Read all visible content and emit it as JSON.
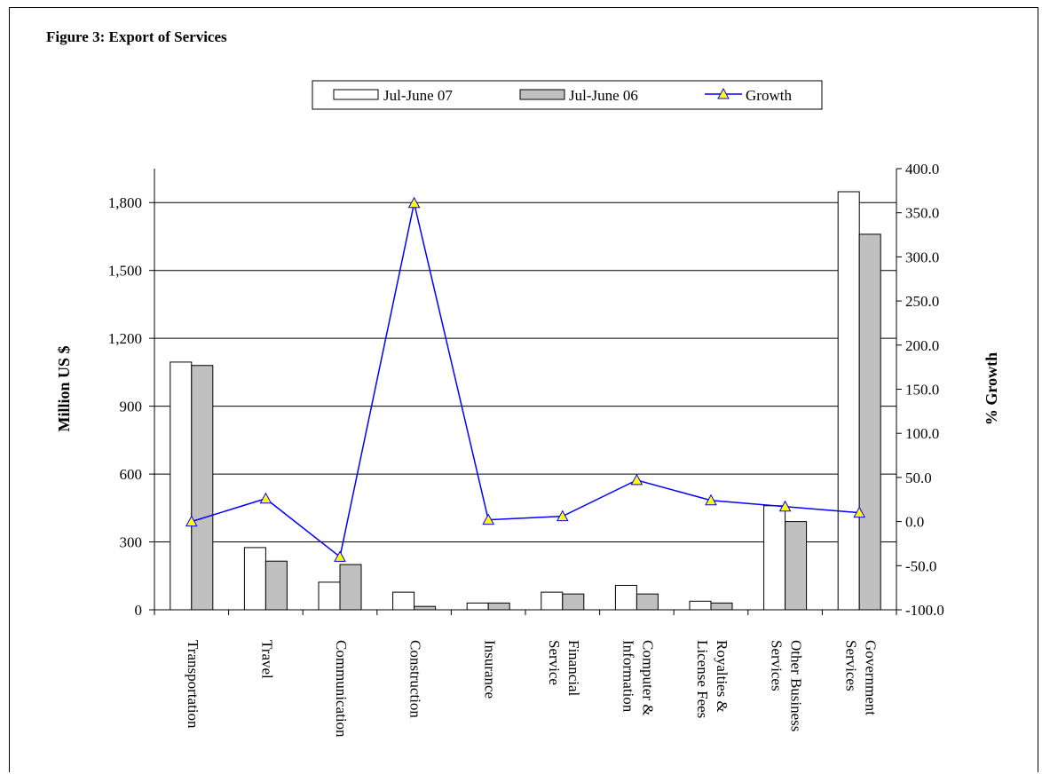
{
  "figure": {
    "title": "Figure 3: Export of Services"
  },
  "legend": {
    "items": [
      {
        "label": "Jul-June 07",
        "kind": "bar",
        "fill": "#ffffff"
      },
      {
        "label": "Jul-June 06",
        "kind": "bar",
        "fill": "#c0c0c0"
      },
      {
        "label": "Growth",
        "kind": "line",
        "color": "#0000ff",
        "marker": "triangle",
        "marker_fill": "#ffff00"
      }
    ]
  },
  "chart_data": {
    "type": "bar",
    "title": "Figure 3: Export of Services",
    "categories": [
      [
        "Transportation"
      ],
      [
        "Travel"
      ],
      [
        "Communication"
      ],
      [
        "Construction"
      ],
      [
        "Insurance"
      ],
      [
        "Financial",
        "Service"
      ],
      [
        "Computer &",
        "Information"
      ],
      [
        "Royalties &",
        "License Fees"
      ],
      [
        "Other Business",
        "Services"
      ],
      [
        "Government",
        "Services"
      ]
    ],
    "series": [
      {
        "name": "Jul-June 07",
        "type": "bar",
        "axis": "left",
        "color": "#ffffff",
        "values": [
          1095,
          275,
          122,
          78,
          30,
          78,
          108,
          38,
          460,
          1848
        ]
      },
      {
        "name": "Jul-June 06",
        "type": "bar",
        "axis": "left",
        "color": "#c0c0c0",
        "values": [
          1080,
          215,
          200,
          15,
          30,
          70,
          70,
          30,
          390,
          1660
        ]
      },
      {
        "name": "Growth",
        "type": "line",
        "axis": "right",
        "color": "#0000ff",
        "values": [
          0.0,
          26.0,
          -40.0,
          361.0,
          2.0,
          6.0,
          47.0,
          24.0,
          17.0,
          10.0
        ]
      }
    ],
    "ylabel": "Million US $",
    "y2label": "% Growth",
    "ylim": [
      0,
      1950
    ],
    "yticks": [
      "0",
      "300",
      "600",
      "900",
      "1,200",
      "1,500",
      "1,800"
    ],
    "y2lim": [
      -100,
      400
    ],
    "y2ticks": [
      "-100.0",
      "-50.0",
      "0.0",
      "50.0",
      "100.0",
      "150.0",
      "200.0",
      "250.0",
      "300.0",
      "350.0",
      "400.0"
    ],
    "grid": true,
    "legend_position": "top-center"
  }
}
